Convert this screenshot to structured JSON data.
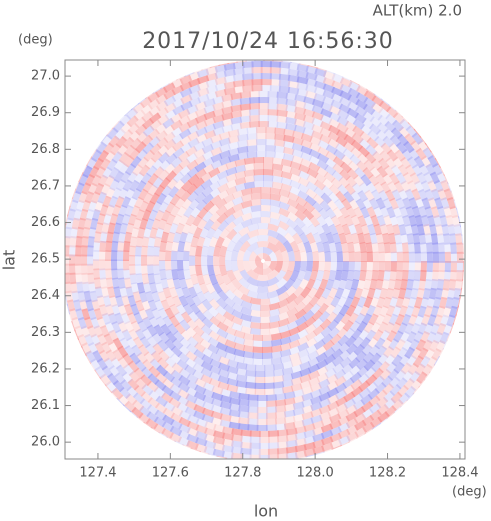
{
  "chart_data": {
    "type": "ppi",
    "title": "2017/10/24 16:56:30",
    "altitude_label": "ALT(km) 2.0",
    "x_label": "lon",
    "y_label": "lat",
    "x_unit": "(deg)",
    "y_unit": "(deg)",
    "xlim": [
      127.309,
      128.414
    ],
    "ylim": [
      25.954,
      27.044
    ],
    "xticks": [
      127.4,
      127.6,
      127.8,
      {
        "value": 128.0,
        "label": "128.0"
      },
      128.2,
      128.4
    ],
    "yticks": [
      {
        "value": 26.0,
        "label": "26.0"
      },
      26.1,
      26.2,
      26.3,
      26.4,
      26.5,
      26.6,
      26.7,
      26.8,
      26.9,
      {
        "value": 27.0,
        "label": "27.0"
      }
    ]
  }
}
